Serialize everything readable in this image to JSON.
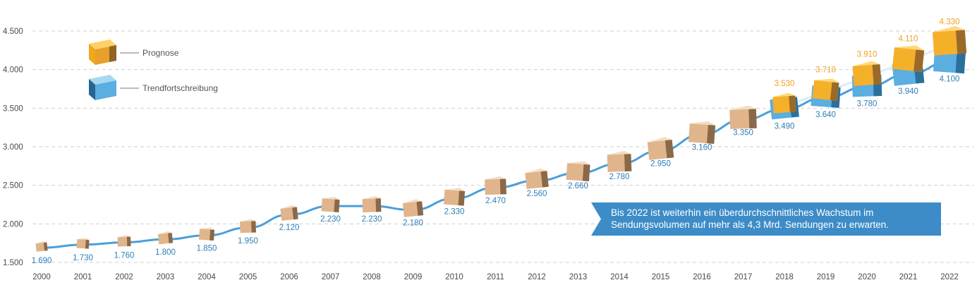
{
  "chart_data": {
    "type": "line",
    "x": [
      "2000",
      "2001",
      "2002",
      "2003",
      "2004",
      "2005",
      "2006",
      "2007",
      "2008",
      "2009",
      "2010",
      "2011",
      "2012",
      "2013",
      "2014",
      "2015",
      "2016",
      "2017",
      "2018",
      "2019",
      "2020",
      "2021",
      "2022"
    ],
    "ylim": [
      1500,
      4500
    ],
    "yticks": [
      "1.500",
      "2.000",
      "2.500",
      "3.000",
      "3.500",
      "4.000",
      "4.500"
    ],
    "grid": true,
    "series": [
      {
        "name": "Trendfortschreibung",
        "color": "#4a9fd8",
        "values": [
          1690,
          1730,
          1760,
          1800,
          1850,
          1950,
          2120,
          2230,
          2230,
          2180,
          2330,
          2470,
          2560,
          2660,
          2780,
          2950,
          3160,
          3350,
          3490,
          3640,
          3780,
          3940,
          4100
        ],
        "labels": [
          "1.690",
          "1.730",
          "1.760",
          "1.800",
          "1.850",
          "1.950",
          "2.120",
          "2.230",
          "2.230",
          "2.180",
          "2.330",
          "2.470",
          "2.560",
          "2.660",
          "2.780",
          "2.950",
          "3.160",
          "3.350",
          "3.490",
          "3.640",
          "3.780",
          "3.940",
          "4.100"
        ]
      },
      {
        "name": "Prognose",
        "color": "#f5a623",
        "x": [
          "2018",
          "2019",
          "2020",
          "2021",
          "2022"
        ],
        "values": [
          3530,
          3710,
          3910,
          4110,
          4330
        ],
        "labels": [
          "3.530",
          "3.710",
          "3.910",
          "4.110",
          "4.330"
        ]
      }
    ],
    "legend": {
      "placement": "top-left",
      "items": [
        {
          "label": "Prognose",
          "icon": "orange-box-icon"
        },
        {
          "label": "Trendfortschreibung",
          "icon": "blue-box-icon"
        }
      ]
    },
    "annotation": "Bis 2022 ist weiterhin ein überdurchschnittliches Wachstum im Sendungsvolumen auf mehr als 4,3 Mrd. Sendungen zu erwarten."
  }
}
